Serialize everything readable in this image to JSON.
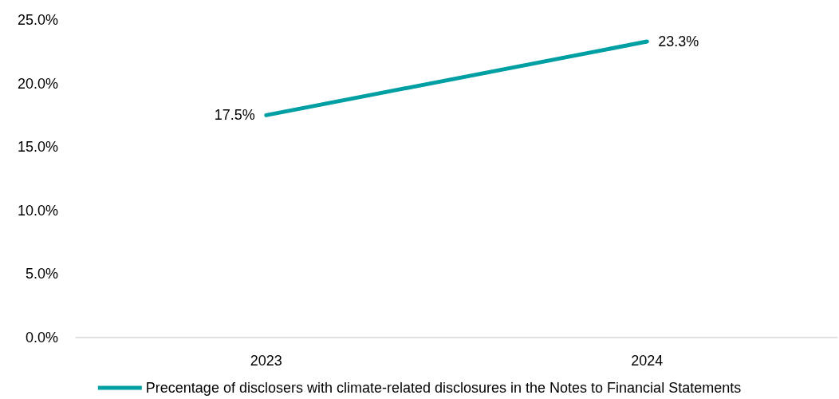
{
  "chart_data": {
    "type": "line",
    "categories": [
      "2023",
      "2024"
    ],
    "series": [
      {
        "name": "Precentage of disclosers with climate-related disclosures in the Notes to Financial Statements",
        "color": "#009fa3",
        "values": [
          17.5,
          23.3
        ],
        "value_labels": [
          "17.5%",
          "23.3%"
        ]
      }
    ],
    "ylim": [
      0,
      25
    ],
    "yticks": [
      {
        "value": 0,
        "label": "0.0%"
      },
      {
        "value": 5,
        "label": "5.0%"
      },
      {
        "value": 10,
        "label": "10.0%"
      },
      {
        "value": 15,
        "label": "15.0%"
      },
      {
        "value": 20,
        "label": "20.0%"
      },
      {
        "value": 25,
        "label": "25.0%"
      }
    ],
    "grid": false,
    "legend": "bottom",
    "marker": "none",
    "line_style": "solid"
  }
}
